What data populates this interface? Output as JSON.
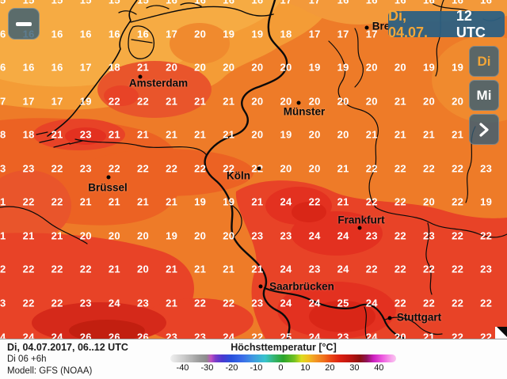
{
  "header": {
    "day": "Di, 04.07.",
    "time": "12 UTC"
  },
  "controls": {
    "zoom_out_icon": "minus-icon",
    "nav": [
      {
        "label": "Di",
        "style": "accent"
      },
      {
        "label": "Mi",
        "style": "white"
      },
      {
        "label": "",
        "style": "white",
        "icon": "chevron-right-icon"
      }
    ]
  },
  "palette": {
    "accent": "#f2a638",
    "panel": "rgba(52,92,118,0.80)",
    "panel_strong": "rgba(44,96,130,0.95)",
    "z15": "#f6ab43",
    "z16": "#f49c36",
    "z17": "#f3993a",
    "z18": "#f08a2e",
    "z20": "#ee7b28",
    "z21": "#ec6223",
    "z22": "#e9552b",
    "z23": "#e84327",
    "z24": "#e33120",
    "z25": "#d92617",
    "z26": "#d5291a",
    "z27": "#c21f10"
  },
  "cities": [
    {
      "name": "Bre",
      "dot": [
        463,
        35
      ],
      "label": [
        481,
        33
      ]
    },
    {
      "name": "Amsterdam",
      "dot": [
        177,
        97
      ],
      "label": [
        200,
        105
      ]
    },
    {
      "name": "Münster",
      "dot": [
        377,
        130
      ],
      "label": [
        384,
        141
      ]
    },
    {
      "name": "Köln",
      "dot": [
        327,
        213
      ],
      "label": [
        301,
        222
      ]
    },
    {
      "name": "Brüssel",
      "dot": [
        137,
        224
      ],
      "label": [
        136,
        237
      ]
    },
    {
      "name": "Frankfurt",
      "dot": [
        454,
        288
      ],
      "label": [
        456,
        278
      ]
    },
    {
      "name": "Saarbrücken",
      "dot": [
        329,
        362
      ],
      "label": [
        381,
        362
      ]
    },
    {
      "name": "Stuttgart",
      "dot": [
        492,
        402
      ],
      "label": [
        529,
        401
      ]
    }
  ],
  "temperature_grid": {
    "col_start": 0,
    "col_step": 36.1,
    "row_start": 0,
    "row_step": 42.55,
    "rows": [
      [
        "15",
        "15",
        "15",
        "15",
        "15",
        "15",
        "16",
        "16",
        "16",
        "16",
        "17",
        "17",
        "16",
        "16",
        "16",
        "16",
        "16",
        "16",
        "16"
      ],
      [
        "16",
        "16",
        "16",
        "16",
        "16",
        "16",
        "17",
        "20",
        "19",
        "19",
        "18",
        "17",
        "17",
        "17",
        "",
        "",
        "",
        "",
        ""
      ],
      [
        "16",
        "16",
        "16",
        "17",
        "18",
        "21",
        "20",
        "20",
        "20",
        "20",
        "20",
        "19",
        "19",
        "20",
        "20",
        "19",
        "19",
        "",
        "19"
      ],
      [
        "17",
        "17",
        "17",
        "19",
        "22",
        "22",
        "21",
        "21",
        "21",
        "20",
        "20",
        "20",
        "20",
        "20",
        "21",
        "20",
        "20",
        "",
        "20"
      ],
      [
        "18",
        "18",
        "21",
        "23",
        "21",
        "21",
        "21",
        "21",
        "21",
        "20",
        "19",
        "20",
        "20",
        "21",
        "21",
        "21",
        "21",
        "",
        "21"
      ],
      [
        "23",
        "23",
        "22",
        "23",
        "22",
        "22",
        "22",
        "22",
        "22",
        "22",
        "20",
        "20",
        "21",
        "22",
        "22",
        "22",
        "22",
        "23",
        ""
      ],
      [
        "21",
        "22",
        "22",
        "21",
        "21",
        "21",
        "21",
        "19",
        "19",
        "21",
        "24",
        "22",
        "21",
        "22",
        "22",
        "20",
        "22",
        "19",
        ""
      ],
      [
        "21",
        "21",
        "21",
        "20",
        "20",
        "20",
        "19",
        "20",
        "20",
        "23",
        "23",
        "24",
        "24",
        "23",
        "22",
        "23",
        "22",
        "22",
        ""
      ],
      [
        "22",
        "22",
        "22",
        "22",
        "21",
        "20",
        "21",
        "21",
        "21",
        "21",
        "24",
        "23",
        "24",
        "22",
        "22",
        "22",
        "22",
        "23",
        ""
      ],
      [
        "23",
        "22",
        "22",
        "23",
        "24",
        "23",
        "21",
        "22",
        "22",
        "23",
        "24",
        "24",
        "25",
        "24",
        "22",
        "22",
        "22",
        "22",
        ""
      ],
      [
        "24",
        "24",
        "24",
        "26",
        "26",
        "26",
        "23",
        "23",
        "24",
        "22",
        "25",
        "24",
        "23",
        "24",
        "20",
        "21",
        "22",
        "22",
        ""
      ]
    ]
  },
  "footer": {
    "line1": "Di, 04.07.2017, 06..12 UTC",
    "line2": "Di 06 +6h",
    "line3": "Modell: GFS (NOAA)"
  },
  "legend": {
    "title": "Höchsttemperatur [°C]",
    "range": [
      -45,
      47
    ],
    "ticks": [
      "-40",
      "-30",
      "-20",
      "-10",
      "0",
      "10",
      "20",
      "30",
      "40"
    ],
    "stops": [
      [
        0,
        "#f0f0f0"
      ],
      [
        7,
        "#c4c4c4"
      ],
      [
        13,
        "#9a9a9a"
      ],
      [
        16,
        "#8c8c8c"
      ],
      [
        18,
        "#c050c0"
      ],
      [
        20,
        "#7a3cc8"
      ],
      [
        23,
        "#4a38d0"
      ],
      [
        27,
        "#2850dc"
      ],
      [
        32,
        "#3a6ce8"
      ],
      [
        37,
        "#3f9ce0"
      ],
      [
        42,
        "#38c4cc"
      ],
      [
        46,
        "#34b470"
      ],
      [
        50,
        "#2aa42a"
      ],
      [
        55,
        "#74c222"
      ],
      [
        58,
        "#dcdc20"
      ],
      [
        61,
        "#f0c020"
      ],
      [
        64,
        "#f29a24"
      ],
      [
        68,
        "#f0701c"
      ],
      [
        71,
        "#ea4814"
      ],
      [
        75,
        "#dc2010"
      ],
      [
        80,
        "#ba1410"
      ],
      [
        84,
        "#8c1010"
      ],
      [
        87,
        "#8e1458"
      ],
      [
        90,
        "#cc20c0"
      ],
      [
        94,
        "#ee5ce0"
      ],
      [
        98,
        "#f8a8ec"
      ],
      [
        100,
        "#fac4f0"
      ]
    ]
  }
}
